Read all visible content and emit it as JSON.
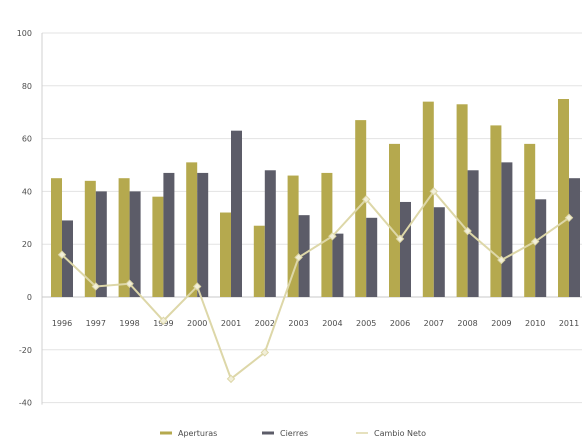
{
  "chart_data": {
    "type": "bar",
    "categories": [
      "1996",
      "1997",
      "1998",
      "1999",
      "2000",
      "2001",
      "2002",
      "2003",
      "2004",
      "2005",
      "2006",
      "2007",
      "2008",
      "2009",
      "2010",
      "2011"
    ],
    "series": [
      {
        "name": "Aperturas",
        "kind": "bar",
        "color": "#b5a94e",
        "values": [
          45,
          44,
          45,
          38,
          51,
          32,
          27,
          46,
          47,
          67,
          58,
          74,
          73,
          65,
          58,
          75
        ]
      },
      {
        "name": "Cierres",
        "kind": "bar",
        "color": "#5c5c68",
        "values": [
          29,
          40,
          40,
          47,
          47,
          63,
          48,
          31,
          24,
          30,
          36,
          34,
          48,
          51,
          37,
          45
        ]
      },
      {
        "name": "Cambio Neto",
        "kind": "line",
        "color": "#ddd7a8",
        "values": [
          16,
          4,
          5,
          -9,
          4,
          -31,
          -21,
          15,
          23,
          37,
          22,
          40,
          25,
          14,
          21,
          30
        ]
      }
    ],
    "y_ticks": [
      "100",
      "80",
      "60",
      "40",
      "20",
      "0",
      "-20",
      "-40"
    ],
    "ylim": [
      -40,
      100
    ],
    "grid": true,
    "legend_position": "bottom"
  }
}
